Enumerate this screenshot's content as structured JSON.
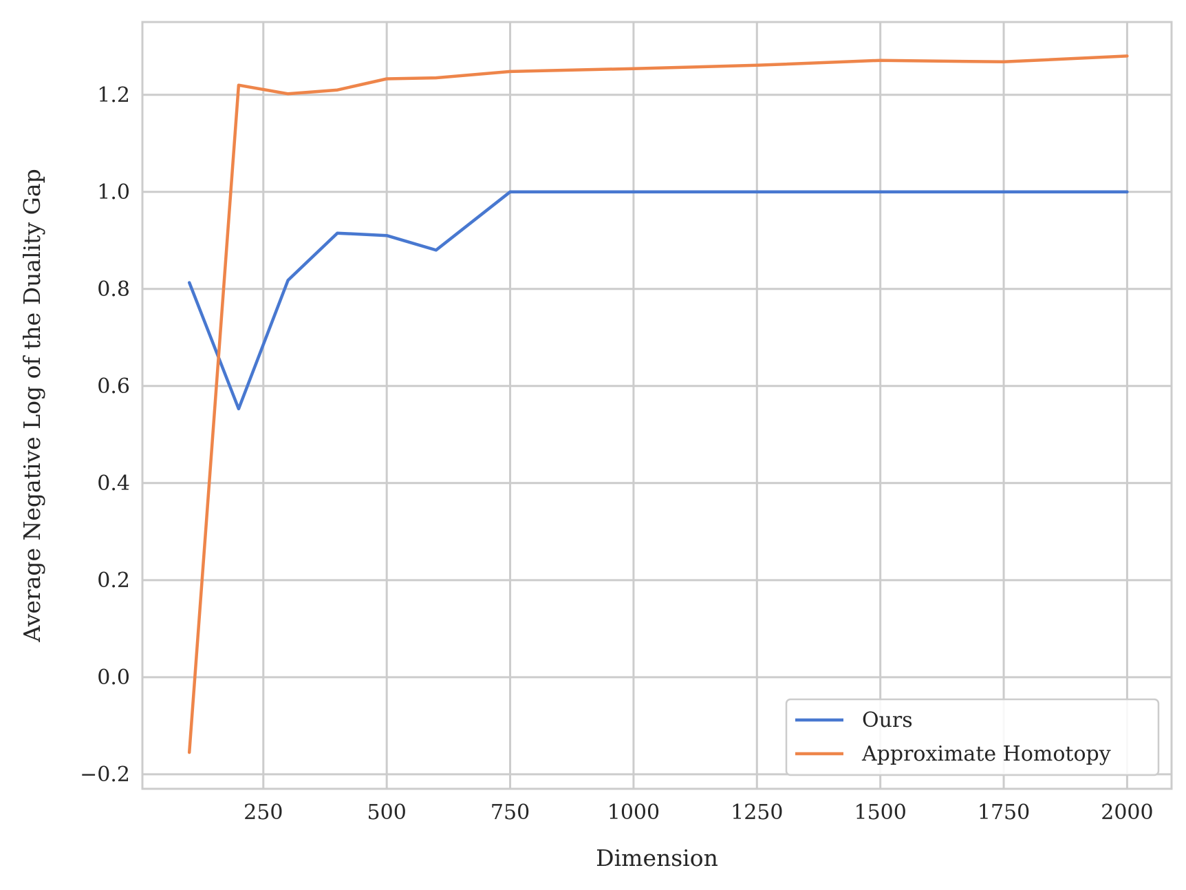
{
  "chart_data": {
    "type": "line",
    "title": "",
    "xlabel": "Dimension",
    "ylabel": "Average Negative Log of the Duality Gap",
    "xlim": [
      5,
      2090
    ],
    "ylim": [
      -0.23,
      1.35
    ],
    "x_ticks": [
      250,
      500,
      750,
      1000,
      1250,
      1500,
      1750,
      2000
    ],
    "x_tick_labels": [
      "250",
      "500",
      "750",
      "1000",
      "1250",
      "1500",
      "1750",
      "2000"
    ],
    "y_ticks": [
      -0.2,
      0.0,
      0.2,
      0.4,
      0.6,
      0.8,
      1.0,
      1.2
    ],
    "y_tick_labels": [
      "−0.2",
      "0.0",
      "0.2",
      "0.4",
      "0.6",
      "0.8",
      "1.0",
      "1.2"
    ],
    "grid": true,
    "legend": {
      "position": "lower-right"
    },
    "x": [
      100,
      200,
      300,
      400,
      500,
      600,
      750,
      1000,
      1250,
      1500,
      1750,
      2000
    ],
    "series": [
      {
        "name": "Ours",
        "color": "#4878d0",
        "values": [
          0.813,
          0.553,
          0.818,
          0.915,
          0.91,
          0.88,
          1.0,
          1.0,
          1.0,
          1.0,
          1.0,
          1.0
        ]
      },
      {
        "name": "Approximate Homotopy",
        "color": "#ee854a",
        "values": [
          -0.155,
          1.22,
          1.202,
          1.21,
          1.233,
          1.235,
          1.248,
          1.254,
          1.261,
          1.271,
          1.268,
          1.28
        ]
      }
    ]
  }
}
